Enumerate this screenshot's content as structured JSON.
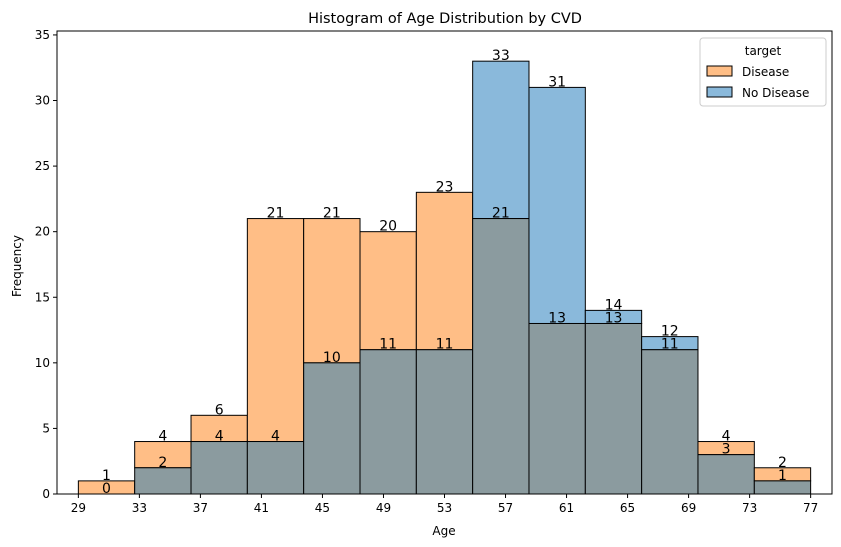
{
  "chart_data": {
    "type": "bar",
    "title": "Histogram of Age Distribution by CVD",
    "xlabel": "Age",
    "ylabel": "Frequency",
    "xlim": [
      27.6,
      78.4
    ],
    "ylim": [
      0,
      35.3
    ],
    "x_ticks": [
      29,
      33,
      37,
      41,
      45,
      49,
      53,
      57,
      61,
      65,
      69,
      73,
      77
    ],
    "y_ticks": [
      0,
      5,
      10,
      15,
      20,
      25,
      30,
      35
    ],
    "bin_edges": [
      29,
      32.692,
      36.385,
      40.077,
      43.769,
      47.462,
      51.154,
      54.846,
      58.538,
      62.231,
      65.923,
      69.615,
      73.308,
      77
    ],
    "grid": false,
    "legend": {
      "title": "target",
      "position": "top-right"
    },
    "series": [
      {
        "name": "Disease",
        "color": "#ffbe86",
        "values": [
          1,
          4,
          6,
          21,
          21,
          20,
          23,
          21,
          13,
          13,
          11,
          4,
          2
        ]
      },
      {
        "name": "No Disease",
        "color": "#8ab9db",
        "values": [
          0,
          2,
          4,
          4,
          10,
          11,
          11,
          33,
          31,
          14,
          12,
          3,
          1
        ]
      }
    ],
    "overlap_color": "#8b9b9f"
  }
}
